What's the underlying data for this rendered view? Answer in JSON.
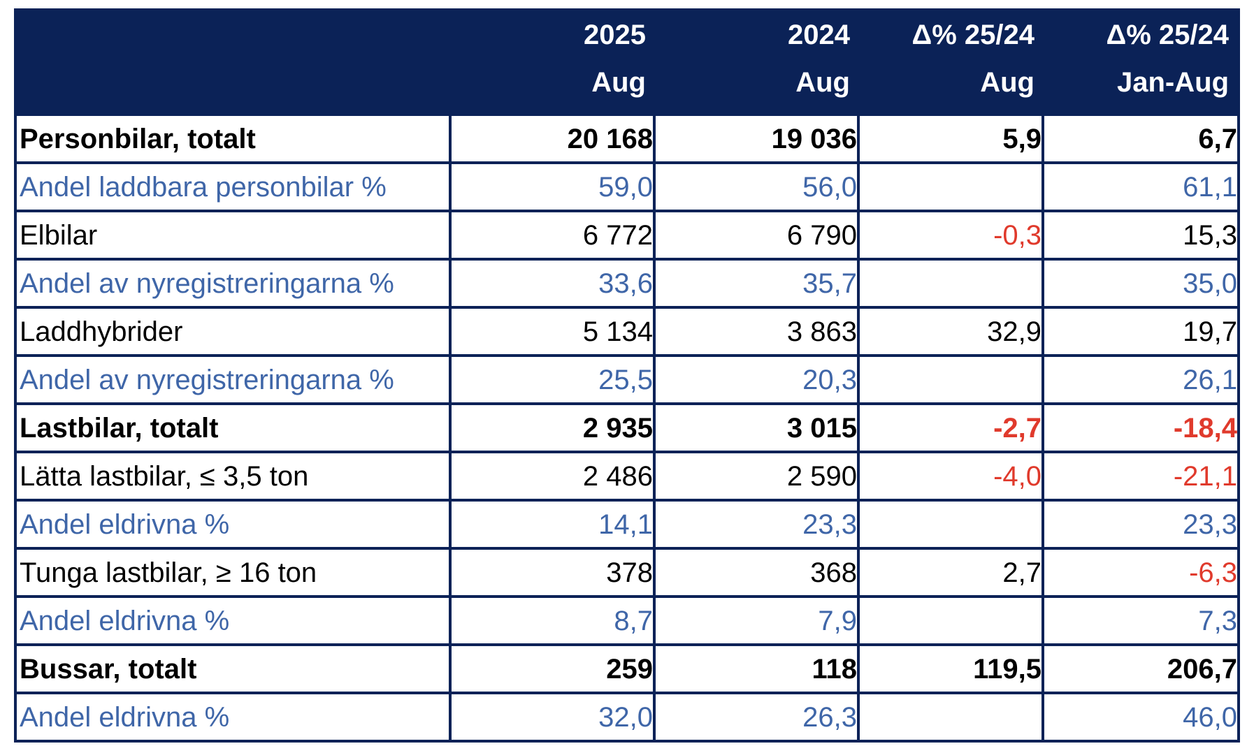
{
  "header": {
    "columns": [
      {
        "line1": "",
        "line2": ""
      },
      {
        "line1": "2025",
        "line2": "Aug"
      },
      {
        "line1": "2024",
        "line2": "Aug"
      },
      {
        "line1": "Δ% 25/24",
        "line2": "Aug"
      },
      {
        "line1": "Δ% 25/24",
        "line2": "Jan-Aug"
      }
    ]
  },
  "colors": {
    "header_bg": "#0b2257",
    "share_text": "#3f66a8",
    "negative_text": "#e03a2c"
  },
  "rows": [
    {
      "label": "Personbilar, totalt",
      "v2025": "20 168",
      "v2024": "19 036",
      "d_aug": "5,9",
      "d_jan_aug": "6,7",
      "style": "bold"
    },
    {
      "label": "Andel laddbara personbilar %",
      "v2025": "59,0",
      "v2024": "56,0",
      "d_aug": "",
      "d_jan_aug": "61,1",
      "style": "share"
    },
    {
      "label": "Elbilar",
      "v2025": "6 772",
      "v2024": "6 790",
      "d_aug": "-0,3",
      "d_jan_aug": "15,3",
      "style": "normal"
    },
    {
      "label": "Andel av nyregistreringarna %",
      "v2025": "33,6",
      "v2024": "35,7",
      "d_aug": "",
      "d_jan_aug": "35,0",
      "style": "share"
    },
    {
      "label": "Laddhybrider",
      "v2025": "5 134",
      "v2024": "3 863",
      "d_aug": "32,9",
      "d_jan_aug": "19,7",
      "style": "normal"
    },
    {
      "label": "Andel av nyregistreringarna %",
      "v2025": "25,5",
      "v2024": "20,3",
      "d_aug": "",
      "d_jan_aug": "26,1",
      "style": "share"
    },
    {
      "label": "Lastbilar, totalt",
      "v2025": "2 935",
      "v2024": "3 015",
      "d_aug": "-2,7",
      "d_jan_aug": "-18,4",
      "style": "bold"
    },
    {
      "label": "Lätta lastbilar, ≤ 3,5 ton",
      "v2025": "2 486",
      "v2024": "2 590",
      "d_aug": "-4,0",
      "d_jan_aug": "-21,1",
      "style": "normal"
    },
    {
      "label": "Andel eldrivna %",
      "v2025": "14,1",
      "v2024": "23,3",
      "d_aug": "",
      "d_jan_aug": "23,3",
      "style": "share"
    },
    {
      "label": "Tunga lastbilar, ≥ 16 ton",
      "v2025": "378",
      "v2024": "368",
      "d_aug": "2,7",
      "d_jan_aug": "-6,3",
      "style": "normal"
    },
    {
      "label": "Andel eldrivna %",
      "v2025": "8,7",
      "v2024": "7,9",
      "d_aug": "",
      "d_jan_aug": "7,3",
      "style": "share"
    },
    {
      "label": "Bussar, totalt",
      "v2025": "259",
      "v2024": "118",
      "d_aug": "119,5",
      "d_jan_aug": "206,7",
      "style": "bold"
    },
    {
      "label": "Andel eldrivna %",
      "v2025": "32,0",
      "v2024": "26,3",
      "d_aug": "",
      "d_jan_aug": "46,0",
      "style": "share"
    }
  ]
}
